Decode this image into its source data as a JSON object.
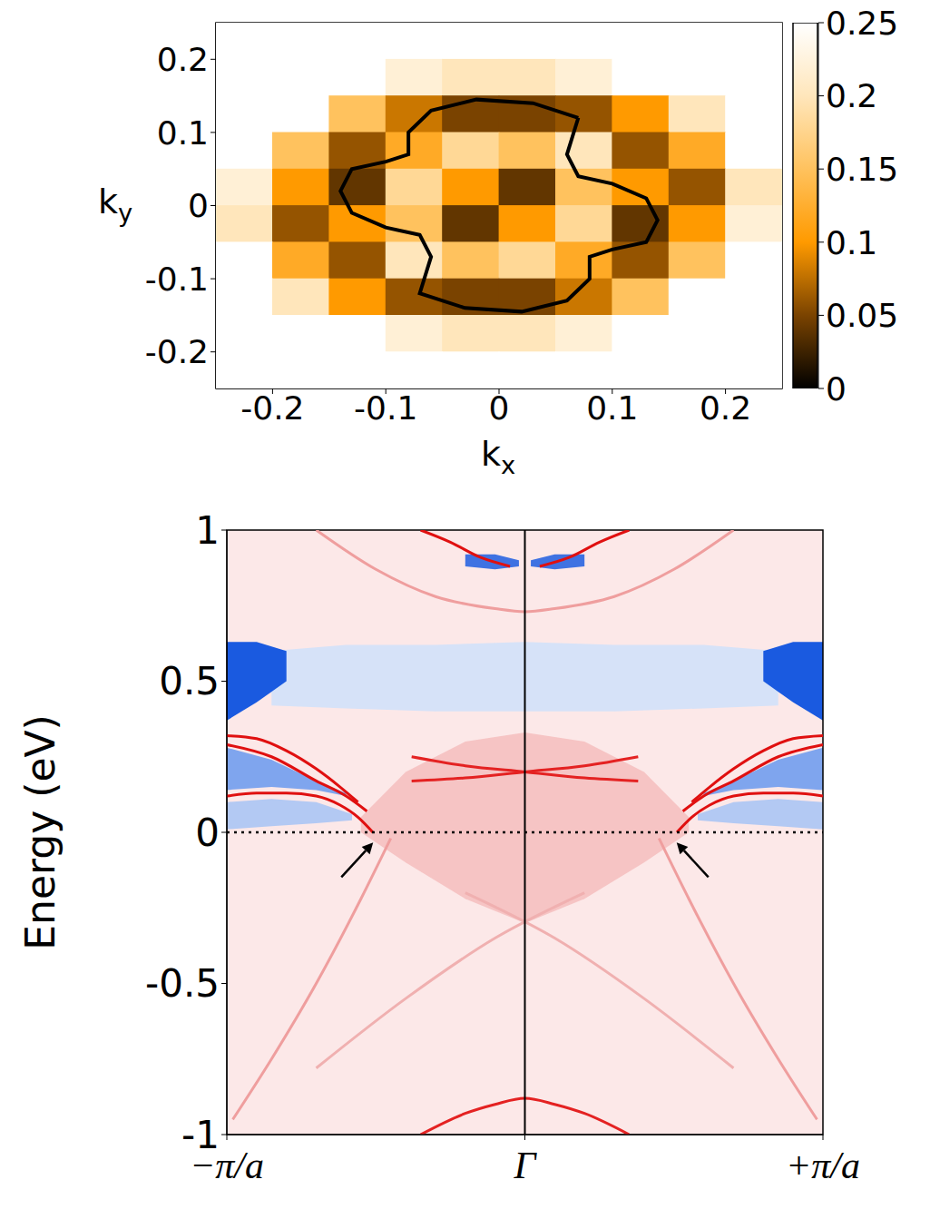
{
  "chart_data": [
    {
      "type": "heatmap",
      "x_label": "kx",
      "y_label": "ky",
      "xlim": [
        -0.25,
        0.25
      ],
      "ylim": [
        -0.25,
        0.25
      ],
      "xticks": [
        -0.2,
        -0.1,
        0,
        0.1,
        0.2
      ],
      "yticks": [
        -0.2,
        -0.1,
        0,
        0.1,
        0.2
      ],
      "cells": {
        "x": [
          -0.225,
          -0.175,
          -0.125,
          -0.075,
          -0.025,
          0.025,
          0.075,
          0.125,
          0.175,
          0.225
        ],
        "y": [
          0.225,
          0.175,
          0.125,
          0.075,
          0.025,
          -0.025,
          -0.075,
          -0.125,
          -0.175,
          -0.225
        ],
        "values": [
          [
            0.25,
            0.25,
            0.25,
            0.25,
            0.25,
            0.25,
            0.25,
            0.25,
            0.25,
            0.25
          ],
          [
            0.25,
            0.25,
            0.25,
            0.22,
            0.2,
            0.2,
            0.22,
            0.25,
            0.25,
            0.25
          ],
          [
            0.25,
            0.25,
            0.15,
            0.08,
            0.05,
            0.05,
            0.06,
            0.1,
            0.2,
            0.25
          ],
          [
            0.25,
            0.15,
            0.06,
            0.12,
            0.18,
            0.15,
            0.2,
            0.06,
            0.12,
            0.25
          ],
          [
            0.22,
            0.1,
            0.04,
            0.18,
            0.1,
            0.04,
            0.15,
            0.1,
            0.06,
            0.2
          ],
          [
            0.2,
            0.06,
            0.1,
            0.15,
            0.04,
            0.1,
            0.18,
            0.04,
            0.1,
            0.22
          ],
          [
            0.25,
            0.12,
            0.06,
            0.2,
            0.15,
            0.18,
            0.12,
            0.06,
            0.15,
            0.25
          ],
          [
            0.25,
            0.2,
            0.1,
            0.06,
            0.05,
            0.05,
            0.08,
            0.15,
            0.25,
            0.25
          ],
          [
            0.25,
            0.25,
            0.25,
            0.22,
            0.2,
            0.2,
            0.22,
            0.25,
            0.25,
            0.25
          ],
          [
            0.25,
            0.25,
            0.25,
            0.25,
            0.25,
            0.25,
            0.25,
            0.25,
            0.25,
            0.25
          ]
        ]
      },
      "colorbar": {
        "range": [
          0,
          0.25
        ],
        "ticks": [
          0,
          0.05,
          0.1,
          0.15,
          0.2,
          0.25
        ]
      },
      "series": [
        {
          "type": "line",
          "color": "#000000",
          "x": [
            0.07,
            0.03,
            -0.02,
            -0.06,
            -0.08,
            -0.08,
            -0.1,
            -0.13,
            -0.14,
            -0.13,
            -0.1,
            -0.07,
            -0.06,
            -0.07,
            -0.03,
            0.02,
            0.06,
            0.08,
            0.08,
            0.1,
            0.13,
            0.14,
            0.13,
            0.1,
            0.07,
            0.06,
            0.07
          ],
          "values": [
            0.12,
            0.14,
            0.145,
            0.13,
            0.1,
            0.07,
            0.06,
            0.05,
            0.02,
            -0.01,
            -0.03,
            -0.04,
            -0.07,
            -0.12,
            -0.14,
            -0.145,
            -0.13,
            -0.1,
            -0.07,
            -0.06,
            -0.05,
            -0.02,
            0.01,
            0.03,
            0.04,
            0.07,
            0.12
          ]
        }
      ]
    },
    {
      "type": "line",
      "y_label": "Energy (eV)",
      "xlim": [
        -1,
        1
      ],
      "ylim": [
        -1,
        1
      ],
      "xticks": [
        {
          "value": -1,
          "label": "−π/a"
        },
        {
          "value": 0,
          "label": "Γ"
        },
        {
          "value": 1,
          "label": "+π/a"
        }
      ],
      "yticks": [
        -1,
        -0.5,
        0,
        0.5,
        1
      ],
      "series": [
        {
          "type": "area",
          "color": "#d6e2f8",
          "x": [
            -0.85,
            -0.6,
            -0.3,
            0,
            0.3,
            0.6,
            0.85
          ],
          "values": [
            [
              0.42,
              0.6
            ],
            [
              0.41,
              0.62
            ],
            [
              0.4,
              0.62
            ],
            [
              0.4,
              0.63
            ],
            [
              0.4,
              0.62
            ],
            [
              0.41,
              0.62
            ],
            [
              0.42,
              0.6
            ]
          ]
        },
        {
          "type": "area",
          "color": "#1a5ae0",
          "x": [
            -1,
            -0.9,
            -0.8
          ],
          "values": [
            [
              0.37,
              0.63
            ],
            [
              0.43,
              0.63
            ],
            [
              0.5,
              0.6
            ]
          ]
        },
        {
          "type": "area",
          "color": "#1a5ae0",
          "x": [
            0.8,
            0.9,
            1
          ],
          "values": [
            [
              0.5,
              0.6
            ],
            [
              0.43,
              0.63
            ],
            [
              0.37,
              0.63
            ]
          ]
        },
        {
          "type": "area",
          "color": "#7fa5ee",
          "x": [
            -1,
            -0.85,
            -0.7,
            -0.6
          ],
          "values": [
            [
              0.14,
              0.28
            ],
            [
              0.15,
              0.24
            ],
            [
              0.14,
              0.17
            ],
            [
              0.12,
              0.13
            ]
          ]
        },
        {
          "type": "area",
          "color": "#7fa5ee",
          "x": [
            0.6,
            0.7,
            0.85,
            1
          ],
          "values": [
            [
              0.12,
              0.13
            ],
            [
              0.14,
              0.17
            ],
            [
              0.15,
              0.24
            ],
            [
              0.14,
              0.28
            ]
          ]
        },
        {
          "type": "area",
          "color": "#b3c9f3",
          "x": [
            -1,
            -0.85,
            -0.7,
            -0.58
          ],
          "values": [
            [
              0.01,
              0.1
            ],
            [
              0.02,
              0.11
            ],
            [
              0.03,
              0.1
            ],
            [
              0.04,
              0.06
            ]
          ]
        },
        {
          "type": "area",
          "color": "#b3c9f3",
          "x": [
            0.58,
            0.7,
            0.85,
            1
          ],
          "values": [
            [
              0.04,
              0.06
            ],
            [
              0.03,
              0.1
            ],
            [
              0.02,
              0.11
            ],
            [
              0.01,
              0.1
            ]
          ]
        },
        {
          "type": "area",
          "color": "#f6c4c4",
          "x": [
            -0.55,
            -0.4,
            -0.2,
            0,
            0.2,
            0.4,
            0.55
          ],
          "values": [
            [
              0,
              0.05
            ],
            [
              -0.1,
              0.2
            ],
            [
              -0.22,
              0.3
            ],
            [
              -0.3,
              0.33
            ],
            [
              -0.22,
              0.3
            ],
            [
              -0.1,
              0.2
            ],
            [
              0,
              0.05
            ]
          ]
        },
        {
          "type": "area",
          "color": "#3f72e2",
          "x": [
            -0.2,
            -0.1,
            -0.02
          ],
          "values": [
            [
              0.88,
              0.92
            ],
            [
              0.87,
              0.92
            ],
            [
              0.88,
              0.9
            ]
          ]
        },
        {
          "type": "area",
          "color": "#3f72e2",
          "x": [
            0.02,
            0.1,
            0.2
          ],
          "values": [
            [
              0.88,
              0.9
            ],
            [
              0.87,
              0.92
            ],
            [
              0.88,
              0.92
            ]
          ]
        },
        {
          "type": "line",
          "color": "#ef9e9e",
          "x": [
            -0.7,
            -0.5,
            -0.3,
            -0.1,
            0,
            0.1,
            0.3,
            0.5,
            0.7
          ],
          "values": [
            1,
            0.87,
            0.78,
            0.74,
            0.73,
            0.74,
            0.78,
            0.87,
            1
          ]
        },
        {
          "type": "line",
          "color": "#ef9e9e",
          "x": [
            -0.98,
            -0.85,
            -0.7,
            -0.55,
            -0.45
          ],
          "values": [
            -0.95,
            -0.75,
            -0.5,
            -0.22,
            -0.02
          ]
        },
        {
          "type": "line",
          "color": "#ef9e9e",
          "x": [
            0.45,
            0.55,
            0.7,
            0.85,
            0.98
          ],
          "values": [
            -0.02,
            -0.22,
            -0.5,
            -0.75,
            -0.95
          ]
        },
        {
          "type": "line",
          "color": "#f0b0b0",
          "x": [
            -0.7,
            -0.4,
            -0.1,
            0.2
          ],
          "values": [
            -0.78,
            -0.55,
            -0.35,
            -0.2
          ]
        },
        {
          "type": "line",
          "color": "#f0b0b0",
          "x": [
            -0.2,
            0.1,
            0.4,
            0.7
          ],
          "values": [
            -0.2,
            -0.35,
            -0.55,
            -0.78
          ]
        },
        {
          "type": "line",
          "color": "#e42222",
          "x": [
            -0.35,
            -0.2,
            -0.1,
            0,
            0.1,
            0.2,
            0.35
          ],
          "values": [
            -1,
            -0.93,
            -0.9,
            -0.88,
            -0.9,
            -0.93,
            -1
          ]
        },
        {
          "type": "line",
          "color": "#e42222",
          "x": [
            -0.38,
            -0.2,
            0,
            0.2,
            0.38
          ],
          "values": [
            0.25,
            0.22,
            0.2,
            0.18,
            0.17
          ]
        },
        {
          "type": "line",
          "color": "#e42222",
          "x": [
            -0.38,
            -0.2,
            0,
            0.2,
            0.38
          ],
          "values": [
            0.17,
            0.18,
            0.2,
            0.22,
            0.25
          ]
        },
        {
          "type": "line",
          "color": "#e01010",
          "x": [
            -0.35,
            -0.25,
            -0.15,
            -0.05
          ],
          "values": [
            1,
            0.96,
            0.91,
            0.88
          ]
        },
        {
          "type": "line",
          "color": "#e01010",
          "x": [
            0.05,
            0.15,
            0.25,
            0.35
          ],
          "values": [
            0.88,
            0.91,
            0.96,
            1
          ]
        },
        {
          "type": "line",
          "color": "#e01010",
          "x": [
            -1,
            -0.9,
            -0.8,
            -0.7,
            -0.62,
            -0.56
          ],
          "values": [
            0.32,
            0.31,
            0.27,
            0.21,
            0.15,
            0.1
          ]
        },
        {
          "type": "line",
          "color": "#e01010",
          "x": [
            0.56,
            0.62,
            0.7,
            0.8,
            0.9,
            1
          ],
          "values": [
            0.1,
            0.15,
            0.21,
            0.27,
            0.31,
            0.32
          ]
        },
        {
          "type": "line",
          "color": "#e01010",
          "x": [
            -1,
            -0.85,
            -0.7,
            -0.6,
            -0.53
          ],
          "values": [
            0.29,
            0.25,
            0.17,
            0.12,
            0.07
          ]
        },
        {
          "type": "line",
          "color": "#e01010",
          "x": [
            0.53,
            0.6,
            0.7,
            0.85,
            1
          ],
          "values": [
            0.07,
            0.12,
            0.17,
            0.25,
            0.29
          ]
        },
        {
          "type": "line",
          "color": "#e01010",
          "x": [
            -1,
            -0.9,
            -0.8,
            -0.7,
            -0.62,
            -0.56,
            -0.51
          ],
          "values": [
            0.12,
            0.13,
            0.13,
            0.12,
            0.09,
            0.05,
            0
          ]
        },
        {
          "type": "line",
          "color": "#e01010",
          "x": [
            0.51,
            0.56,
            0.62,
            0.7,
            0.8,
            0.9,
            1
          ],
          "values": [
            0,
            0.05,
            0.09,
            0.12,
            0.13,
            0.13,
            0.12
          ]
        }
      ],
      "reference_lines": [
        {
          "y": 0,
          "line_style": "dotted"
        },
        {
          "x": 0,
          "line_style": "solid"
        }
      ],
      "arrows": [
        {
          "x": -0.5,
          "y": -0.01
        },
        {
          "x": 0.5,
          "y": -0.01
        }
      ]
    }
  ]
}
